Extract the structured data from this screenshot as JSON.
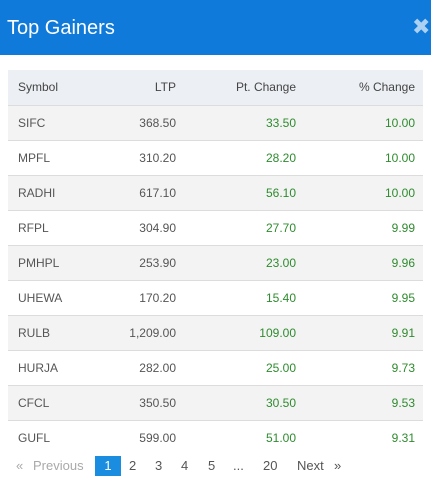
{
  "header": {
    "title": "Top Gainers",
    "close_glyph": "✖"
  },
  "table": {
    "columns": [
      "Symbol",
      "LTP",
      "Pt. Change",
      "% Change"
    ],
    "rows": [
      {
        "symbol": "SIFC",
        "ltp": "368.50",
        "pt_change": "33.50",
        "pct_change": "10.00"
      },
      {
        "symbol": "MPFL",
        "ltp": "310.20",
        "pt_change": "28.20",
        "pct_change": "10.00"
      },
      {
        "symbol": "RADHI",
        "ltp": "617.10",
        "pt_change": "56.10",
        "pct_change": "10.00"
      },
      {
        "symbol": "RFPL",
        "ltp": "304.90",
        "pt_change": "27.70",
        "pct_change": "9.99"
      },
      {
        "symbol": "PMHPL",
        "ltp": "253.90",
        "pt_change": "23.00",
        "pct_change": "9.96"
      },
      {
        "symbol": "UHEWA",
        "ltp": "170.20",
        "pt_change": "15.40",
        "pct_change": "9.95"
      },
      {
        "symbol": "RULB",
        "ltp": "1,209.00",
        "pt_change": "109.00",
        "pct_change": "9.91"
      },
      {
        "symbol": "HURJA",
        "ltp": "282.00",
        "pt_change": "25.00",
        "pct_change": "9.73"
      },
      {
        "symbol": "CFCL",
        "ltp": "350.50",
        "pt_change": "30.50",
        "pct_change": "9.53"
      },
      {
        "symbol": "GUFL",
        "ltp": "599.00",
        "pt_change": "51.00",
        "pct_change": "9.31"
      }
    ]
  },
  "pagination": {
    "first": "«",
    "previous": "Previous",
    "pages": [
      "1",
      "2",
      "3",
      "4",
      "5"
    ],
    "ellipsis": "...",
    "last_page": "20",
    "next": "Next",
    "end": "»",
    "current": "1"
  },
  "colors": {
    "header_bg": "#0f7ad9",
    "positive": "#2e8b2e",
    "active_page": "#1a8de0"
  }
}
